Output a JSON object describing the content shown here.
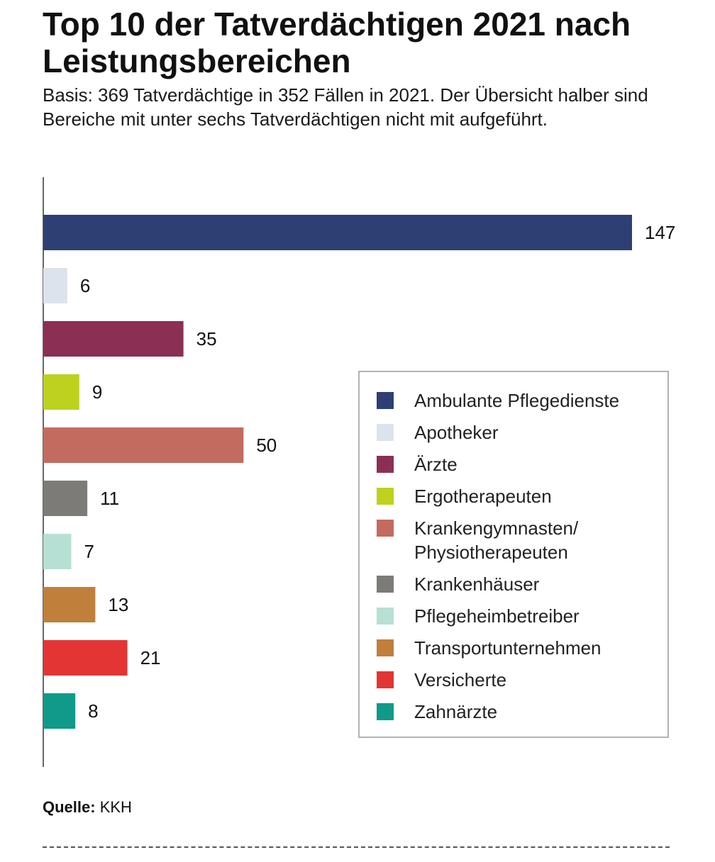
{
  "header": {
    "title": "Top 10 der Tatverdächtigen 2021 nach Leistungsbereichen",
    "subtitle": "Basis: 369 Tatverdächtige in 352 Fällen in 2021. Der Übersicht halber sind Bereiche mit unter sechs Tatverdächtigen nicht mit aufgeführt."
  },
  "footer": {
    "source_label": "Quelle:",
    "source_value": "KKH"
  },
  "chart_data": {
    "type": "bar",
    "orientation": "horizontal",
    "title": "Top 10 der Tatverdächtigen 2021 nach Leistungsbereichen",
    "subtitle": "Basis: 369 Tatverdächtige in 352 Fällen in 2021. Der Übersicht halber sind Bereiche mit unter sechs Tatverdächtigen nicht mit aufgeführt.",
    "categories": [
      "Ambulante Pflegedienste",
      "Apotheker",
      "Ärzte",
      "Ergotherapeuten",
      "Krankengymnasten/ Physiotherapeuten",
      "Krankenhäuser",
      "Pflegeheimbetreiber",
      "Transportunternehmen",
      "Versicherte",
      "Zahnärzte"
    ],
    "values": [
      147,
      6,
      35,
      9,
      50,
      11,
      7,
      13,
      21,
      8
    ],
    "colors": [
      "#2e3f74",
      "#dce3ec",
      "#8c2f54",
      "#bdd21f",
      "#c46b5f",
      "#7d7b77",
      "#b7e0d4",
      "#c07f3b",
      "#e43535",
      "#109a8a"
    ],
    "data_labels": [
      "147",
      "6",
      "35",
      "9",
      "50",
      "11",
      "7",
      "13",
      "21",
      "8"
    ],
    "xlim": [
      0,
      147
    ],
    "grid": false,
    "axis_ticks": false,
    "legend_position": "right"
  }
}
